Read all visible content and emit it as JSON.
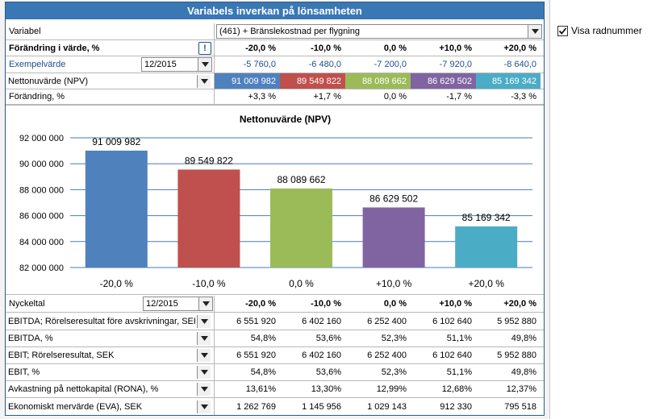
{
  "title": "Variabels inverkan på lönsamheten",
  "variable": {
    "label": "Variabel",
    "value": "(461) + Bränslekostnad per flygning"
  },
  "change_row": {
    "label": "Förändring i värde, %",
    "warn_icon": "!",
    "values": [
      "-20,0 %",
      "-10,0 %",
      "0,0 %",
      "+10,0 %",
      "+20,0 %"
    ]
  },
  "example_row": {
    "label": "Exempelvärde",
    "period": "12/2015",
    "values": [
      "-5 760,0",
      "-6 480,0",
      "-7 200,0",
      "-7 920,0",
      "-8 640,0"
    ]
  },
  "npv_row": {
    "label": "Nettonuvärde (NPV)",
    "values": [
      "91 009 982",
      "89 549 822",
      "88 089 662",
      "86 629 502",
      "85 169 342"
    ],
    "colors": [
      "#4f81bd",
      "#c0504d",
      "#9bbb59",
      "#8064a2",
      "#4bacc6"
    ]
  },
  "pct_row": {
    "label": "Förändring, %",
    "values": [
      "+3,3 %",
      "+1,7 %",
      "0,0 %",
      "-1,7 %",
      "-3,3 %"
    ]
  },
  "chart_data": {
    "type": "bar",
    "title": "Nettonuvärde (NPV)",
    "categories": [
      "-20,0 %",
      "-10,0 %",
      "0,0 %",
      "+10,0 %",
      "+20,0 %"
    ],
    "values": [
      91009982,
      89549822,
      88089662,
      86629502,
      85169342
    ],
    "data_labels": [
      "91 009 982",
      "89 549 822",
      "88 089 662",
      "86 629 502",
      "85 169 342"
    ],
    "colors": [
      "#4f81bd",
      "#c0504d",
      "#9bbb59",
      "#8064a2",
      "#4bacc6"
    ],
    "ylim": [
      82000000,
      92000000
    ],
    "yticks": [
      82000000,
      84000000,
      86000000,
      88000000,
      90000000,
      92000000
    ],
    "ytick_labels": [
      "82 000 000",
      "84 000 000",
      "86 000 000",
      "88 000 000",
      "90 000 000",
      "92 000 000"
    ],
    "xlabel": "",
    "ylabel": "",
    "grid": true
  },
  "kpi": {
    "header": {
      "label": "Nyckeltal",
      "period": "12/2015",
      "values": [
        "-20,0 %",
        "-10,0 %",
        "0,0 %",
        "+10,0 %",
        "+20,0 %"
      ]
    },
    "rows": [
      {
        "label": "EBITDA; Rörelseresultat före avskrivningar, SEK",
        "values": [
          "6 551 920",
          "6 402 160",
          "6 252 400",
          "6 102 640",
          "5 952 880"
        ]
      },
      {
        "label": "EBITDA, %",
        "values": [
          "54,8%",
          "53,6%",
          "52,3%",
          "51,1%",
          "49,8%"
        ]
      },
      {
        "label": "EBIT; Rörelseresultat, SEK",
        "values": [
          "6 551 920",
          "6 402 160",
          "6 252 400",
          "6 102 640",
          "5 952 880"
        ]
      },
      {
        "label": "EBIT, %",
        "values": [
          "54,8%",
          "53,6%",
          "52,3%",
          "51,1%",
          "49,8%"
        ]
      },
      {
        "label": "Avkastning på nettokapital (RONA), %",
        "values": [
          "13,61%",
          "13,30%",
          "12,99%",
          "12,68%",
          "12,37%"
        ]
      },
      {
        "label": "Ekonomiskt mervärde (EVA), SEK",
        "values": [
          "1 262 769",
          "1 145 956",
          "1 029 143",
          "912 330",
          "795 518"
        ]
      }
    ]
  },
  "options": {
    "show_row_numbers_label": "Visa radnummer",
    "show_row_numbers_checked": true
  }
}
